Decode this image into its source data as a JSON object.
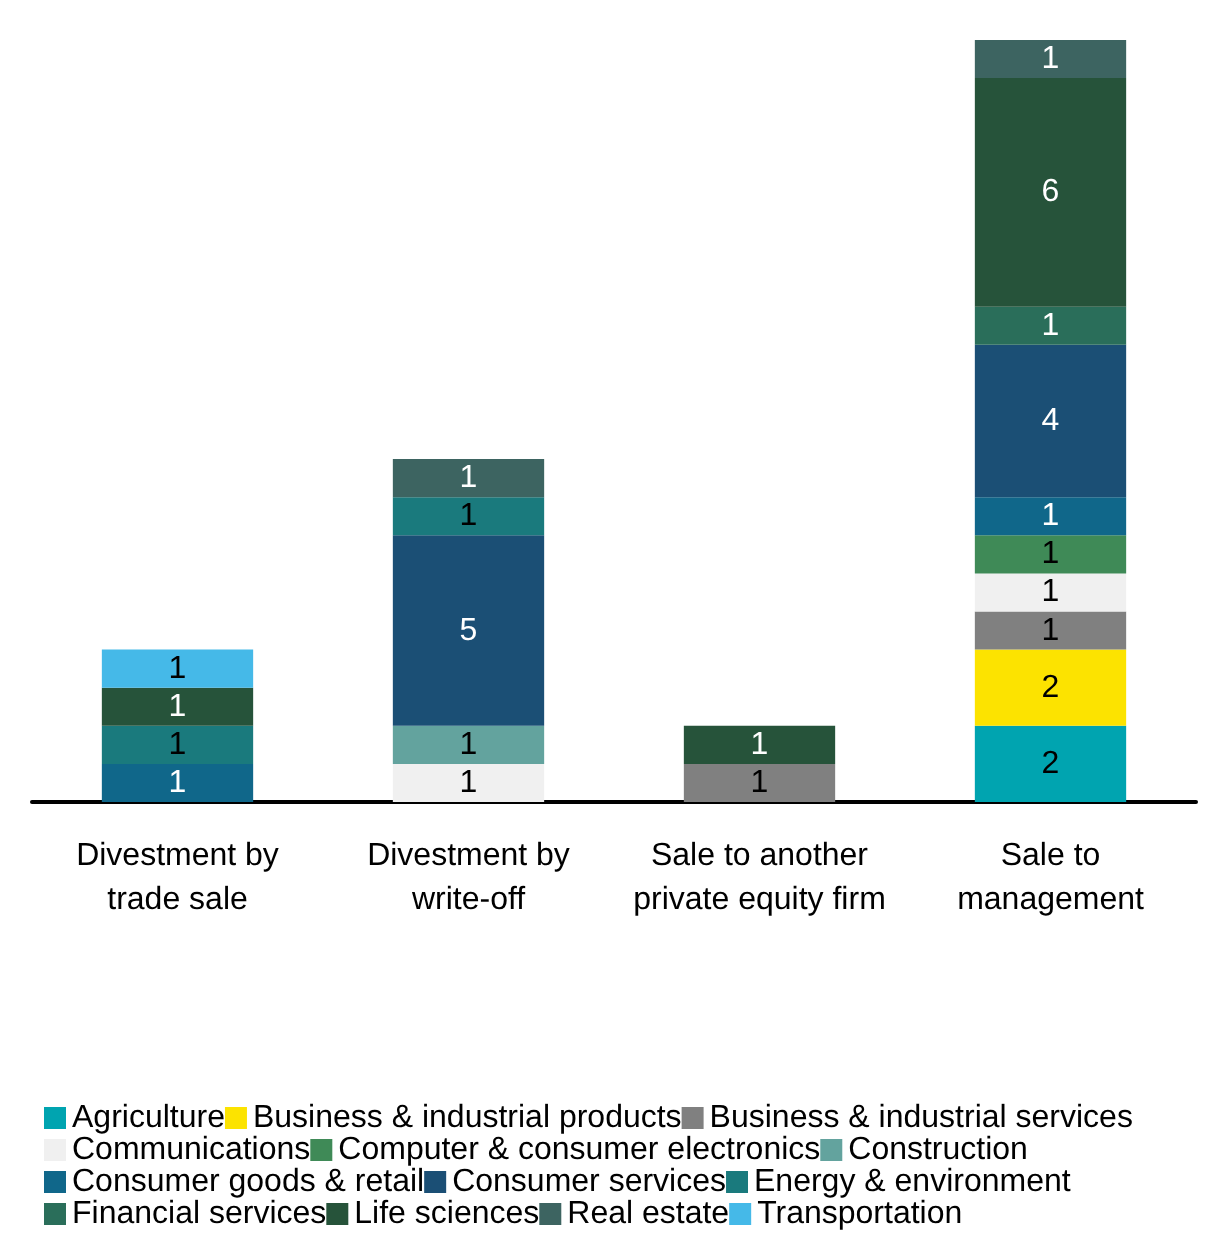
{
  "chart_data": {
    "type": "bar",
    "stacked": true,
    "data_labels": true,
    "legend": "bottom",
    "grid": false,
    "tick_labels": "x",
    "categories": [
      "Divestment by\ntrade sale",
      "Divestment by\nwrite-off",
      "Sale to another\nprivate equity firm",
      "Sale to\nmanagement"
    ],
    "series": [
      {
        "name": "Agriculture",
        "color": "#00a4b0",
        "values": [
          null,
          null,
          null,
          2
        ]
      },
      {
        "name": "Business & industrial products",
        "color": "#fce300",
        "values": [
          null,
          null,
          null,
          2
        ]
      },
      {
        "name": "Business & industrial services",
        "color": "#808080",
        "values": [
          null,
          null,
          1,
          1
        ]
      },
      {
        "name": "Communications",
        "color": "#f0f0f0",
        "values": [
          null,
          1,
          null,
          1
        ]
      },
      {
        "name": "Computer & consumer electronics",
        "color": "#3f8a57",
        "values": [
          null,
          null,
          null,
          1
        ]
      },
      {
        "name": "Construction",
        "color": "#63a39e",
        "values": [
          null,
          1,
          null,
          null
        ]
      },
      {
        "name": "Consumer goods & retail",
        "color": "#10678a",
        "values": [
          1,
          null,
          null,
          1
        ]
      },
      {
        "name": "Consumer services",
        "color": "#1b4f75",
        "values": [
          null,
          5,
          null,
          4
        ]
      },
      {
        "name": "Energy & environment",
        "color": "#1a7a7d",
        "values": [
          1,
          1,
          null,
          null
        ]
      },
      {
        "name": "Financial services",
        "color": "#2a6e5a",
        "values": [
          null,
          null,
          null,
          1
        ]
      },
      {
        "name": "Life sciences",
        "color": "#26533a",
        "values": [
          1,
          null,
          1,
          6
        ]
      },
      {
        "name": "Real estate",
        "color": "#3d6461",
        "values": [
          null,
          1,
          null,
          1
        ]
      },
      {
        "name": "Transportation",
        "color": "#45b9e8",
        "values": [
          1,
          null,
          null,
          null
        ]
      }
    ]
  }
}
